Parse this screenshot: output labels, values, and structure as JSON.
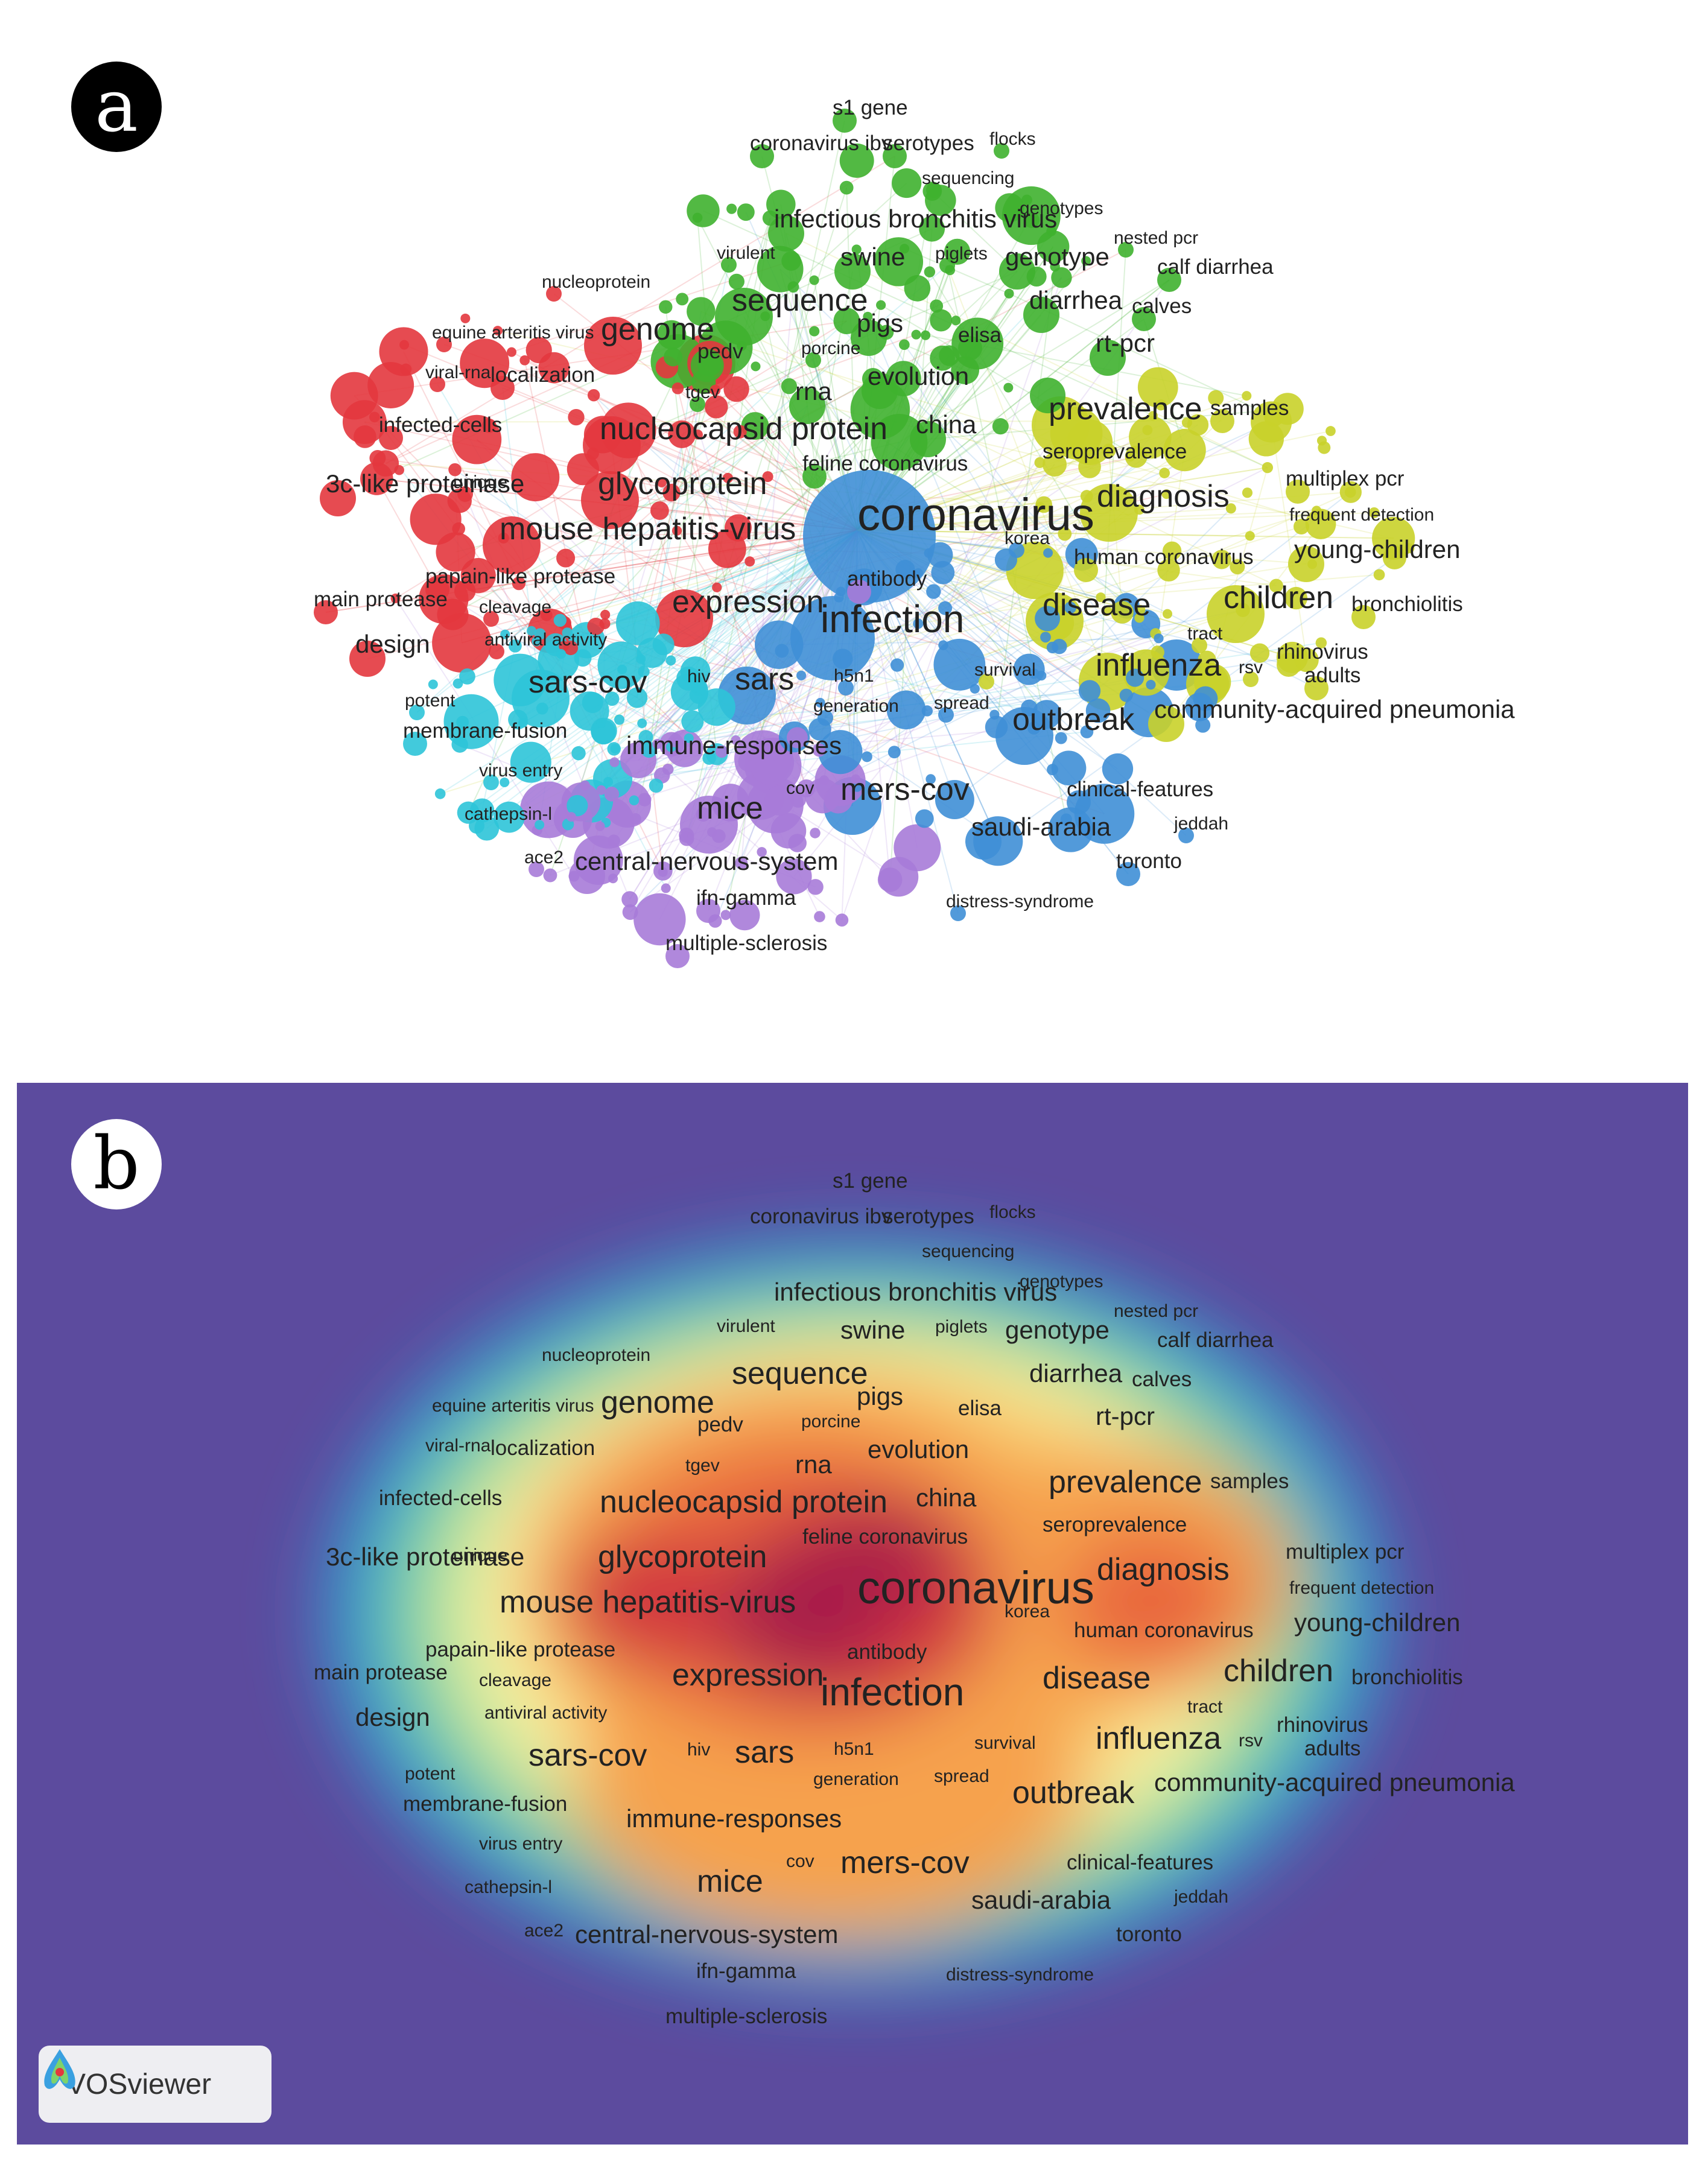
{
  "panels": {
    "a_label": "a",
    "b_label": "b",
    "software_badge": "VOSviewer"
  },
  "colors": {
    "red": "#e3373e",
    "green": "#3fb12f",
    "yellow": "#c9d12a",
    "blue": "#3f8fd6",
    "cyan": "#2ec4d8",
    "purple": "#a77bd8",
    "density_background": "#5c4b9e"
  },
  "clusters": {
    "red": [
      "nucleoprotein",
      "equine arteritis virus",
      "genome",
      "viral-rna",
      "localization",
      "infected-cells",
      "nucleocapsid protein",
      "3c-like proteinase",
      "unique",
      "glycoprotein",
      "mouse hepatitis-virus",
      "papain-like protease",
      "main protease",
      "cleavage",
      "expression",
      "design",
      "antiviral activity"
    ],
    "green": [
      "s1 gene",
      "coronavirus ibv",
      "serotypes",
      "flocks",
      "sequencing",
      "genotypes",
      "infectious bronchitis virus",
      "nested pcr",
      "virulent",
      "swine",
      "piglets",
      "genotype",
      "calf diarrhea",
      "sequence",
      "pigs",
      "diarrhea",
      "calves",
      "pedv",
      "porcine",
      "elisa",
      "rt-pcr",
      "tgev",
      "evolution",
      "rna",
      "china",
      "feline coronavirus"
    ],
    "yellow": [
      "prevalence",
      "samples",
      "seroprevalence",
      "multiplex pcr",
      "diagnosis",
      "frequent detection",
      "human coronavirus",
      "young-children",
      "disease",
      "children",
      "bronchiolitis",
      "tract",
      "rhinovirus",
      "influenza",
      "rsv",
      "adults",
      "survival",
      "community-acquired pneumonia"
    ],
    "blue": [
      "coronavirus",
      "korea",
      "infection",
      "sars",
      "h5n1",
      "generation",
      "spread",
      "outbreak",
      "mers-cov",
      "clinical-features",
      "saudi-arabia",
      "jeddah",
      "toronto",
      "distress-syndrome"
    ],
    "cyan": [
      "sars-cov",
      "potent",
      "membrane-fusion",
      "virus entry",
      "cathepsin-l",
      "hiv"
    ],
    "purple": [
      "antibody",
      "immune-responses",
      "cov",
      "mice",
      "ace2",
      "central-nervous-system",
      "ifn-gamma",
      "multiple-sclerosis"
    ]
  },
  "terms": [
    {
      "t": "s1 gene",
      "s": "s",
      "c": "green"
    },
    {
      "t": "coronavirus ibv",
      "s": "s",
      "c": "green"
    },
    {
      "t": "serotypes",
      "s": "s",
      "c": "green"
    },
    {
      "t": "flocks",
      "s": "xs",
      "c": "green"
    },
    {
      "t": "sequencing",
      "s": "xs",
      "c": "green"
    },
    {
      "t": "infectious bronchitis virus",
      "s": "m",
      "c": "green"
    },
    {
      "t": "genotypes",
      "s": "xs",
      "c": "green"
    },
    {
      "t": "nested pcr",
      "s": "xs",
      "c": "green"
    },
    {
      "t": "virulent",
      "s": "xs",
      "c": "green"
    },
    {
      "t": "swine",
      "s": "m",
      "c": "green"
    },
    {
      "t": "piglets",
      "s": "xs",
      "c": "green"
    },
    {
      "t": "genotype",
      "s": "m",
      "c": "green"
    },
    {
      "t": "calf diarrhea",
      "s": "s",
      "c": "green"
    },
    {
      "t": "nucleoprotein",
      "s": "xs",
      "c": "red"
    },
    {
      "t": "sequence",
      "s": "l",
      "c": "green"
    },
    {
      "t": "diarrhea",
      "s": "m",
      "c": "green"
    },
    {
      "t": "calves",
      "s": "s",
      "c": "green"
    },
    {
      "t": "pigs",
      "s": "m",
      "c": "green"
    },
    {
      "t": "equine arteritis virus",
      "s": "xs",
      "c": "red"
    },
    {
      "t": "genome",
      "s": "l",
      "c": "red"
    },
    {
      "t": "elisa",
      "s": "s",
      "c": "green"
    },
    {
      "t": "pedv",
      "s": "s",
      "c": "green"
    },
    {
      "t": "porcine",
      "s": "xs",
      "c": "green"
    },
    {
      "t": "rt-pcr",
      "s": "m",
      "c": "green"
    },
    {
      "t": "viral-rna",
      "s": "xs",
      "c": "red"
    },
    {
      "t": "localization",
      "s": "s",
      "c": "red"
    },
    {
      "t": "evolution",
      "s": "m",
      "c": "green"
    },
    {
      "t": "tgev",
      "s": "xs",
      "c": "green"
    },
    {
      "t": "rna",
      "s": "m",
      "c": "green"
    },
    {
      "t": "samples",
      "s": "s",
      "c": "yellow"
    },
    {
      "t": "prevalence",
      "s": "l",
      "c": "yellow"
    },
    {
      "t": "infected-cells",
      "s": "s",
      "c": "red"
    },
    {
      "t": "nucleocapsid protein",
      "s": "l",
      "c": "red"
    },
    {
      "t": "china",
      "s": "m",
      "c": "green"
    },
    {
      "t": "seroprevalence",
      "s": "s",
      "c": "yellow"
    },
    {
      "t": "feline coronavirus",
      "s": "s",
      "c": "green"
    },
    {
      "t": "multiplex pcr",
      "s": "s",
      "c": "yellow"
    },
    {
      "t": "3c-like proteinase",
      "s": "m",
      "c": "red"
    },
    {
      "t": "unique",
      "s": "xs",
      "c": "red"
    },
    {
      "t": "glycoprotein",
      "s": "l",
      "c": "red"
    },
    {
      "t": "diagnosis",
      "s": "l",
      "c": "yellow"
    },
    {
      "t": "frequent detection",
      "s": "xs",
      "c": "yellow"
    },
    {
      "t": "coronavirus",
      "s": "xxl",
      "c": "blue"
    },
    {
      "t": "mouse hepatitis-virus",
      "s": "l",
      "c": "red"
    },
    {
      "t": "korea",
      "s": "xs",
      "c": "blue"
    },
    {
      "t": "human coronavirus",
      "s": "s",
      "c": "yellow"
    },
    {
      "t": "young-children",
      "s": "m",
      "c": "yellow"
    },
    {
      "t": "papain-like protease",
      "s": "s",
      "c": "red"
    },
    {
      "t": "antibody",
      "s": "s",
      "c": "purple"
    },
    {
      "t": "main protease",
      "s": "s",
      "c": "red"
    },
    {
      "t": "cleavage",
      "s": "xs",
      "c": "red"
    },
    {
      "t": "expression",
      "s": "l",
      "c": "red"
    },
    {
      "t": "infection",
      "s": "xl",
      "c": "blue"
    },
    {
      "t": "disease",
      "s": "l",
      "c": "yellow"
    },
    {
      "t": "children",
      "s": "l",
      "c": "yellow"
    },
    {
      "t": "bronchiolitis",
      "s": "s",
      "c": "yellow"
    },
    {
      "t": "tract",
      "s": "xs",
      "c": "yellow"
    },
    {
      "t": "design",
      "s": "m",
      "c": "red"
    },
    {
      "t": "antiviral activity",
      "s": "xs",
      "c": "red"
    },
    {
      "t": "rhinovirus",
      "s": "s",
      "c": "yellow"
    },
    {
      "t": "survival",
      "s": "xs",
      "c": "yellow"
    },
    {
      "t": "influenza",
      "s": "l",
      "c": "yellow"
    },
    {
      "t": "rsv",
      "s": "xs",
      "c": "yellow"
    },
    {
      "t": "adults",
      "s": "s",
      "c": "yellow"
    },
    {
      "t": "hiv",
      "s": "xs",
      "c": "cyan"
    },
    {
      "t": "sars",
      "s": "l",
      "c": "blue"
    },
    {
      "t": "h5n1",
      "s": "xs",
      "c": "blue"
    },
    {
      "t": "sars-cov",
      "s": "l",
      "c": "cyan"
    },
    {
      "t": "potent",
      "s": "xs",
      "c": "cyan"
    },
    {
      "t": "generation",
      "s": "xs",
      "c": "blue"
    },
    {
      "t": "spread",
      "s": "xs",
      "c": "blue"
    },
    {
      "t": "community-acquired pneumonia",
      "s": "m",
      "c": "yellow"
    },
    {
      "t": "membrane-fusion",
      "s": "s",
      "c": "cyan"
    },
    {
      "t": "outbreak",
      "s": "l",
      "c": "blue"
    },
    {
      "t": "immune-responses",
      "s": "m",
      "c": "purple"
    },
    {
      "t": "virus entry",
      "s": "xs",
      "c": "cyan"
    },
    {
      "t": "cov",
      "s": "xs",
      "c": "purple"
    },
    {
      "t": "clinical-features",
      "s": "s",
      "c": "blue"
    },
    {
      "t": "mers-cov",
      "s": "l",
      "c": "blue"
    },
    {
      "t": "cathepsin-l",
      "s": "xs",
      "c": "cyan"
    },
    {
      "t": "mice",
      "s": "l",
      "c": "purple"
    },
    {
      "t": "saudi-arabia",
      "s": "m",
      "c": "blue"
    },
    {
      "t": "jeddah",
      "s": "xs",
      "c": "blue"
    },
    {
      "t": "ace2",
      "s": "xs",
      "c": "purple"
    },
    {
      "t": "central-nervous-system",
      "s": "m",
      "c": "purple"
    },
    {
      "t": "toronto",
      "s": "s",
      "c": "blue"
    },
    {
      "t": "ifn-gamma",
      "s": "s",
      "c": "purple"
    },
    {
      "t": "distress-syndrome",
      "s": "xs",
      "c": "blue"
    },
    {
      "t": "multiple-sclerosis",
      "s": "s",
      "c": "purple"
    }
  ]
}
